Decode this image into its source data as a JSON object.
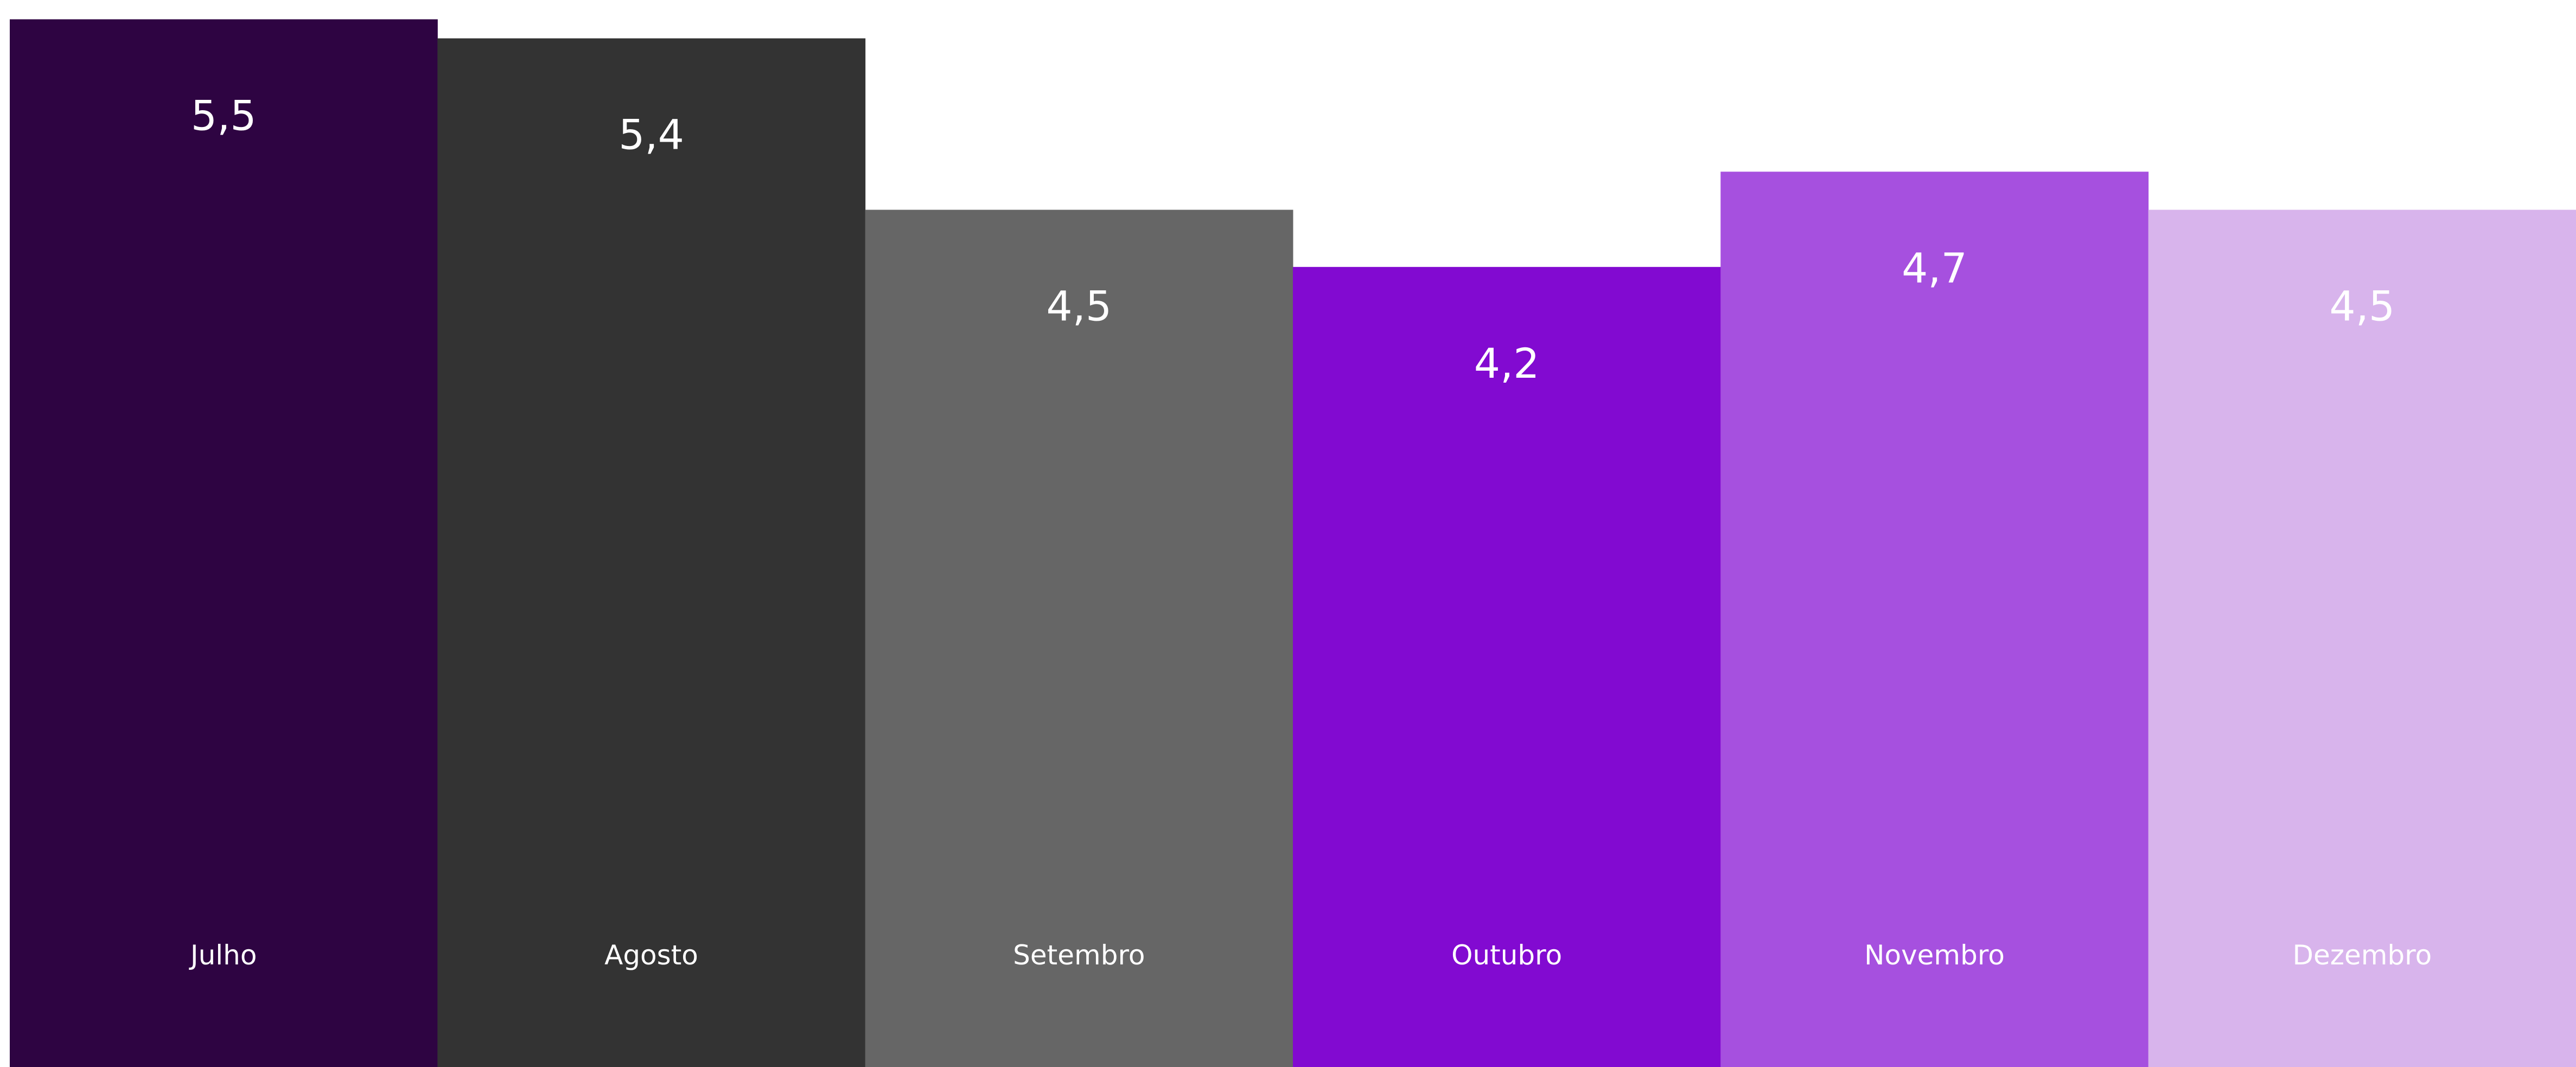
{
  "chart_data": {
    "type": "bar",
    "categories": [
      "Julho",
      "Agosto",
      "Setembro",
      "Outubro",
      "Novembro",
      "Dezembro"
    ],
    "values": [
      5.5,
      5.4,
      4.5,
      4.2,
      4.7,
      4.5
    ],
    "value_labels": [
      "5,5",
      "5,4",
      "4,5",
      "4,2",
      "4,7",
      "4,5"
    ],
    "colors": [
      "#2e0442",
      "#333333",
      "#666666",
      "#820ad1",
      "#a650df",
      "#d8b4ec"
    ],
    "label_color": "#ffffff",
    "ylim": [
      0,
      5.55
    ],
    "grid": false,
    "legend": "none"
  }
}
